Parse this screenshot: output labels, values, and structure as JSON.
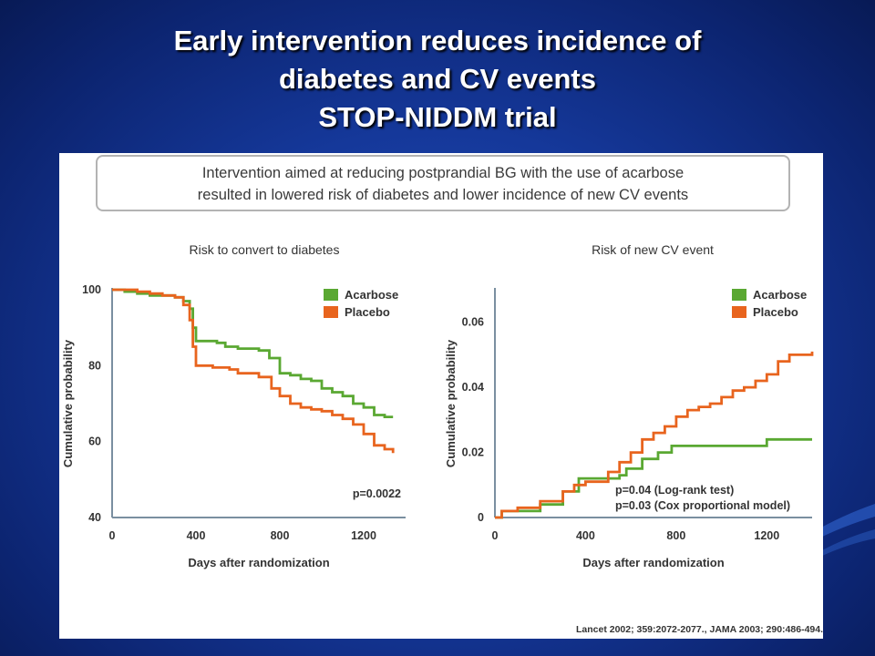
{
  "slide": {
    "title_lines": [
      "Early intervention reduces incidence of",
      "diabetes and CV events",
      "STOP-NIDDM trial"
    ]
  },
  "callout": {
    "line1": "Intervention aimed at reducing postprandial BG with the use of acarbose",
    "line2": "resulted in lowered risk of diabetes and lower incidence of new CV events"
  },
  "citation": "Lancet 2002; 359:2072-2077., JAMA 2003; 290:486-494.",
  "colors": {
    "acarbose": "#5aa832",
    "placebo": "#e8641e",
    "axis": "#7a8fa0",
    "text": "#333333"
  },
  "chart_data": [
    {
      "type": "line",
      "title": "Risk to convert to diabetes",
      "xlabel": "Days after randomization",
      "ylabel": "Cumulative probability",
      "xlim": [
        0,
        1400
      ],
      "ylim": [
        40,
        100
      ],
      "xticks": [
        0,
        400,
        800,
        1200
      ],
      "yticks": [
        40,
        60,
        80,
        100
      ],
      "legend": "top-right",
      "annotation": "p=0.0022",
      "series": [
        {
          "name": "Acarbose",
          "color": "#5aa832",
          "x": [
            0,
            60,
            120,
            180,
            240,
            300,
            340,
            370,
            385,
            400,
            500,
            540,
            600,
            700,
            750,
            800,
            850,
            900,
            950,
            1000,
            1050,
            1100,
            1150,
            1200,
            1250,
            1300,
            1340
          ],
          "y": [
            100,
            99.5,
            99,
            98.5,
            98.5,
            98,
            97,
            95,
            90,
            86.5,
            86,
            85,
            84.5,
            84,
            82,
            78,
            77.5,
            76.5,
            76,
            74,
            73,
            72,
            70,
            69,
            67,
            66.5,
            66.5
          ]
        },
        {
          "name": "Placebo",
          "color": "#e8641e",
          "x": [
            0,
            60,
            120,
            180,
            240,
            300,
            340,
            370,
            385,
            400,
            480,
            560,
            600,
            700,
            760,
            800,
            850,
            900,
            950,
            1000,
            1050,
            1100,
            1150,
            1200,
            1250,
            1300,
            1340
          ],
          "y": [
            100,
            100,
            99.5,
            99,
            98.5,
            98,
            96,
            92,
            85,
            80,
            79.5,
            79,
            78,
            77,
            74,
            72,
            70,
            69,
            68.5,
            68,
            67,
            66,
            64.5,
            62,
            59,
            58,
            57
          ]
        }
      ]
    },
    {
      "type": "line",
      "title": "Risk of new CV event",
      "xlabel": "Days after randomization",
      "ylabel": "Cumulative probability",
      "xlim": [
        0,
        1400
      ],
      "ylim": [
        0,
        0.07
      ],
      "xticks": [
        0,
        400,
        800,
        1200
      ],
      "yticks": [
        0,
        0.02,
        0.04,
        0.06
      ],
      "ytick_labels": [
        "0",
        "0.02",
        "0.04",
        "0.06"
      ],
      "legend": "top-right",
      "annotations": [
        "p=0.04 (Log-rank test)",
        "p=0.03 (Cox proportional model)"
      ],
      "series": [
        {
          "name": "Acarbose",
          "color": "#5aa832",
          "x": [
            0,
            30,
            100,
            200,
            300,
            370,
            450,
            550,
            580,
            650,
            720,
            780,
            900,
            1000,
            1100,
            1200,
            1400
          ],
          "y": [
            0,
            0.002,
            0.002,
            0.004,
            0.008,
            0.012,
            0.012,
            0.013,
            0.015,
            0.018,
            0.02,
            0.022,
            0.022,
            0.022,
            0.022,
            0.024,
            0.024
          ]
        },
        {
          "name": "Placebo",
          "color": "#e8641e",
          "x": [
            0,
            30,
            100,
            200,
            300,
            350,
            400,
            500,
            550,
            600,
            650,
            700,
            750,
            800,
            850,
            900,
            950,
            1000,
            1050,
            1100,
            1150,
            1200,
            1250,
            1300,
            1400
          ],
          "y": [
            0,
            0.002,
            0.003,
            0.005,
            0.008,
            0.01,
            0.011,
            0.014,
            0.017,
            0.02,
            0.024,
            0.026,
            0.028,
            0.031,
            0.033,
            0.034,
            0.035,
            0.037,
            0.039,
            0.04,
            0.042,
            0.044,
            0.048,
            0.05,
            0.051
          ]
        }
      ]
    }
  ]
}
